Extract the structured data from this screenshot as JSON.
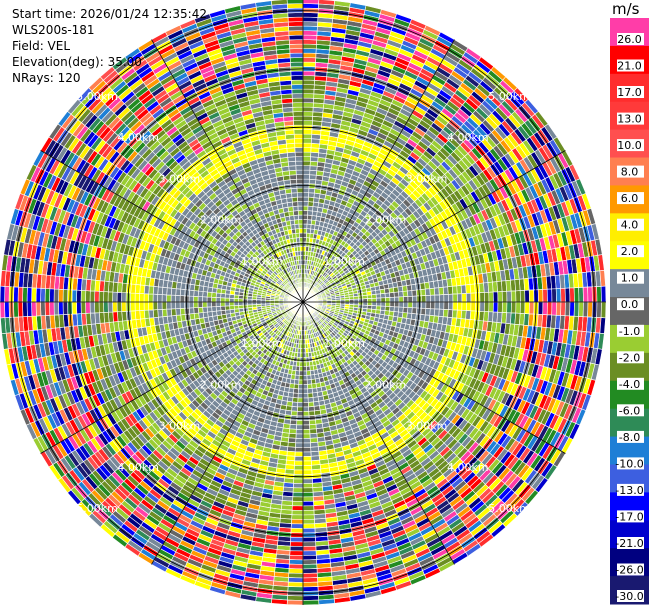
{
  "header": {
    "start_time": "Start time: 2026/01/24 12:35:42",
    "instrument": "WLS200s-181",
    "field": "Field: VEL",
    "elevation": "Elevation(deg): 35.00",
    "nrays": "NRays: 120"
  },
  "colorbar": {
    "unit": "m/s",
    "ticks": [
      "26.0",
      "21.0",
      "17.0",
      "13.0",
      "10.0",
      "8.0",
      "6.0",
      "4.0",
      "2.0",
      "1.0",
      "0.0",
      "-1.0",
      "-2.0",
      "-4.0",
      "-6.0",
      "-8.0",
      "-10.0",
      "-13.0",
      "-17.0",
      "-21.0",
      "-26.0",
      "-30.0"
    ],
    "colors": [
      "#ff3da8",
      "#ff0000",
      "#ff2d2d",
      "#ff3a3a",
      "#ff4f4f",
      "#ff7f50",
      "#ff9900",
      "#ffee00",
      "#ffff00",
      "#778899",
      "#666666",
      "#9acd32",
      "#6b8e23",
      "#228b22",
      "#2e8b57",
      "#1e7fd6",
      "#3d5fe0",
      "#0000ff",
      "#0000cd",
      "#000080",
      "#191970"
    ]
  },
  "range_rings": [
    "1.00km",
    "2.00km",
    "3.00km",
    "4.00km",
    "5.00km"
  ],
  "chart_data": {
    "type": "heatmap",
    "projection": "polar-ppi",
    "field": "VEL",
    "units": "m/s",
    "nrays": 120,
    "range_rings_km": [
      1,
      2,
      3,
      4,
      5
    ],
    "max_range_km": 5.2,
    "color_levels": [
      26.0,
      21.0,
      17.0,
      13.0,
      10.0,
      8.0,
      6.0,
      4.0,
      2.0,
      1.0,
      0.0,
      -1.0,
      -2.0,
      -4.0,
      -6.0,
      -8.0,
      -10.0,
      -13.0,
      -17.0,
      -21.0,
      -26.0,
      -30.0
    ],
    "radial_profile": [
      {
        "range_km": [
          0.0,
          0.2
        ],
        "dominant_bin": "2.0 to 4.0"
      },
      {
        "range_km": [
          0.2,
          1.2
        ],
        "dominant_bin": "-2.0 to -1.0"
      },
      {
        "range_km": [
          1.2,
          2.5
        ],
        "dominant_bin": "0.0 to 1.0"
      },
      {
        "range_km": [
          2.5,
          3.0
        ],
        "dominant_bin": "2.0 to 4.0"
      },
      {
        "range_km": [
          3.0,
          3.8
        ],
        "dominant_bin": "-4.0 to -2.0"
      },
      {
        "range_km": [
          3.8,
          5.2
        ],
        "dominant_bin": "noise (all bins)"
      }
    ]
  }
}
